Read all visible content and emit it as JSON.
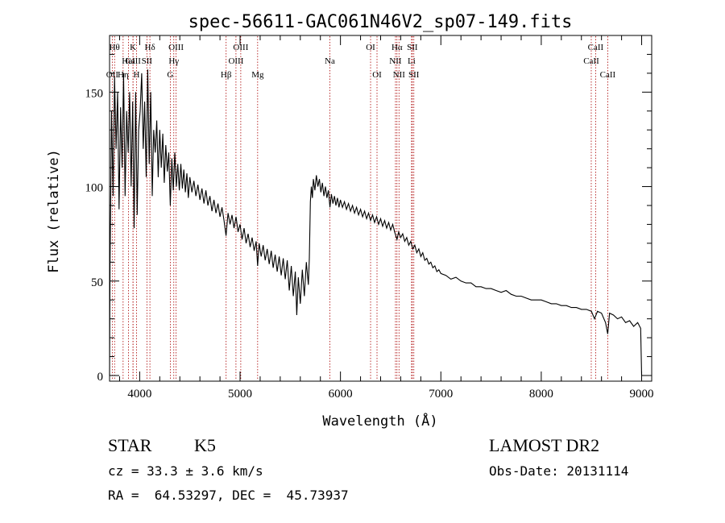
{
  "chart_data": {
    "type": "line",
    "title": "spec-56611-GAC061N46V2_sp07-149.fits",
    "xlabel": "Wavelength (Å)",
    "ylabel": "Flux (relative)",
    "xlim": [
      3700,
      9100
    ],
    "ylim": [
      -3,
      180
    ],
    "x_ticks": [
      "4000",
      "5000",
      "6000",
      "7000",
      "8000",
      "9000"
    ],
    "y_ticks": [
      "0",
      "50",
      "100",
      "150"
    ],
    "grid": false,
    "line_color": "#000000",
    "marker_line_color": "#aa0000",
    "spectrum": [
      [
        3700,
        0
      ],
      [
        3705,
        60
      ],
      [
        3720,
        140
      ],
      [
        3735,
        95
      ],
      [
        3750,
        158
      ],
      [
        3765,
        120
      ],
      [
        3780,
        150
      ],
      [
        3795,
        88
      ],
      [
        3810,
        142
      ],
      [
        3825,
        110
      ],
      [
        3840,
        160
      ],
      [
        3855,
        95
      ],
      [
        3870,
        140
      ],
      [
        3885,
        118
      ],
      [
        3900,
        150
      ],
      [
        3915,
        100
      ],
      [
        3930,
        145
      ],
      [
        3945,
        78
      ],
      [
        3960,
        150
      ],
      [
        3975,
        85
      ],
      [
        3990,
        130
      ],
      [
        4005,
        140
      ],
      [
        4020,
        160
      ],
      [
        4035,
        120
      ],
      [
        4050,
        145
      ],
      [
        4065,
        105
      ],
      [
        4080,
        162
      ],
      [
        4095,
        112
      ],
      [
        4110,
        150
      ],
      [
        4125,
        95
      ],
      [
        4140,
        130
      ],
      [
        4155,
        118
      ],
      [
        4170,
        135
      ],
      [
        4185,
        105
      ],
      [
        4200,
        130
      ],
      [
        4215,
        110
      ],
      [
        4230,
        128
      ],
      [
        4245,
        102
      ],
      [
        4260,
        122
      ],
      [
        4275,
        108
      ],
      [
        4290,
        118
      ],
      [
        4305,
        90
      ],
      [
        4320,
        115
      ],
      [
        4335,
        98
      ],
      [
        4350,
        118
      ],
      [
        4365,
        100
      ],
      [
        4380,
        112
      ],
      [
        4395,
        98
      ],
      [
        4410,
        112
      ],
      [
        4425,
        99
      ],
      [
        4440,
        109
      ],
      [
        4455,
        97
      ],
      [
        4470,
        107
      ],
      [
        4485,
        94
      ],
      [
        4500,
        105
      ],
      [
        4520,
        97
      ],
      [
        4540,
        103
      ],
      [
        4560,
        95
      ],
      [
        4580,
        101
      ],
      [
        4600,
        93
      ],
      [
        4620,
        99
      ],
      [
        4640,
        91
      ],
      [
        4660,
        98
      ],
      [
        4680,
        90
      ],
      [
        4700,
        95
      ],
      [
        4720,
        87
      ],
      [
        4740,
        93
      ],
      [
        4760,
        86
      ],
      [
        4780,
        91
      ],
      [
        4800,
        84
      ],
      [
        4820,
        89
      ],
      [
        4840,
        82
      ],
      [
        4860,
        74
      ],
      [
        4880,
        86
      ],
      [
        4900,
        80
      ],
      [
        4920,
        85
      ],
      [
        4940,
        78
      ],
      [
        4960,
        84
      ],
      [
        4980,
        76
      ],
      [
        5000,
        80
      ],
      [
        5020,
        72
      ],
      [
        5040,
        78
      ],
      [
        5060,
        70
      ],
      [
        5080,
        75
      ],
      [
        5100,
        68
      ],
      [
        5120,
        73
      ],
      [
        5140,
        66
      ],
      [
        5160,
        71
      ],
      [
        5175,
        58
      ],
      [
        5190,
        70
      ],
      [
        5210,
        63
      ],
      [
        5230,
        69
      ],
      [
        5250,
        61
      ],
      [
        5270,
        67
      ],
      [
        5290,
        59
      ],
      [
        5310,
        66
      ],
      [
        5330,
        57
      ],
      [
        5350,
        64
      ],
      [
        5370,
        55
      ],
      [
        5390,
        63
      ],
      [
        5410,
        53
      ],
      [
        5430,
        62
      ],
      [
        5450,
        51
      ],
      [
        5470,
        61
      ],
      [
        5490,
        45
      ],
      [
        5510,
        58
      ],
      [
        5530,
        42
      ],
      [
        5550,
        55
      ],
      [
        5565,
        32
      ],
      [
        5580,
        52
      ],
      [
        5600,
        38
      ],
      [
        5620,
        56
      ],
      [
        5640,
        42
      ],
      [
        5660,
        60
      ],
      [
        5680,
        48
      ],
      [
        5690,
        62
      ],
      [
        5700,
        92
      ],
      [
        5710,
        100
      ],
      [
        5720,
        94
      ],
      [
        5730,
        104
      ],
      [
        5745,
        98
      ],
      [
        5760,
        106
      ],
      [
        5775,
        100
      ],
      [
        5790,
        104
      ],
      [
        5805,
        97
      ],
      [
        5820,
        102
      ],
      [
        5835,
        95
      ],
      [
        5850,
        100
      ],
      [
        5865,
        94
      ],
      [
        5880,
        98
      ],
      [
        5895,
        89
      ],
      [
        5910,
        96
      ],
      [
        5925,
        91
      ],
      [
        5940,
        95
      ],
      [
        5955,
        90
      ],
      [
        5970,
        94
      ],
      [
        5985,
        89
      ],
      [
        6000,
        93
      ],
      [
        6020,
        89
      ],
      [
        6040,
        92
      ],
      [
        6060,
        88
      ],
      [
        6080,
        91
      ],
      [
        6100,
        87
      ],
      [
        6120,
        90
      ],
      [
        6140,
        86
      ],
      [
        6160,
        89
      ],
      [
        6180,
        85
      ],
      [
        6200,
        88
      ],
      [
        6220,
        84
      ],
      [
        6240,
        87
      ],
      [
        6260,
        83
      ],
      [
        6280,
        86
      ],
      [
        6300,
        82
      ],
      [
        6320,
        85
      ],
      [
        6340,
        81
      ],
      [
        6360,
        84
      ],
      [
        6380,
        80
      ],
      [
        6400,
        83
      ],
      [
        6420,
        79
      ],
      [
        6440,
        82
      ],
      [
        6460,
        78
      ],
      [
        6480,
        81
      ],
      [
        6500,
        77
      ],
      [
        6520,
        80
      ],
      [
        6540,
        76
      ],
      [
        6563,
        72
      ],
      [
        6580,
        76
      ],
      [
        6600,
        73
      ],
      [
        6620,
        75
      ],
      [
        6640,
        71
      ],
      [
        6660,
        73
      ],
      [
        6680,
        69
      ],
      [
        6700,
        71
      ],
      [
        6720,
        67
      ],
      [
        6740,
        69
      ],
      [
        6760,
        65
      ],
      [
        6780,
        67
      ],
      [
        6800,
        63
      ],
      [
        6820,
        65
      ],
      [
        6840,
        61
      ],
      [
        6860,
        62
      ],
      [
        6880,
        59
      ],
      [
        6900,
        60
      ],
      [
        6920,
        57
      ],
      [
        6940,
        58
      ],
      [
        6960,
        55
      ],
      [
        6980,
        56
      ],
      [
        7000,
        54
      ],
      [
        7050,
        53
      ],
      [
        7100,
        51
      ],
      [
        7150,
        52
      ],
      [
        7200,
        50
      ],
      [
        7250,
        49
      ],
      [
        7300,
        49
      ],
      [
        7350,
        47
      ],
      [
        7400,
        47
      ],
      [
        7450,
        46
      ],
      [
        7500,
        46
      ],
      [
        7550,
        45
      ],
      [
        7600,
        44
      ],
      [
        7650,
        45
      ],
      [
        7700,
        43
      ],
      [
        7750,
        42
      ],
      [
        7800,
        42
      ],
      [
        7850,
        41
      ],
      [
        7900,
        40
      ],
      [
        7950,
        40
      ],
      [
        8000,
        40
      ],
      [
        8050,
        39
      ],
      [
        8100,
        38
      ],
      [
        8150,
        38
      ],
      [
        8200,
        37
      ],
      [
        8250,
        37
      ],
      [
        8300,
        36
      ],
      [
        8350,
        36
      ],
      [
        8400,
        35
      ],
      [
        8450,
        35
      ],
      [
        8500,
        34
      ],
      [
        8530,
        30
      ],
      [
        8560,
        34
      ],
      [
        8600,
        33
      ],
      [
        8640,
        28
      ],
      [
        8662,
        22
      ],
      [
        8680,
        33
      ],
      [
        8720,
        32
      ],
      [
        8760,
        30
      ],
      [
        8800,
        31
      ],
      [
        8840,
        28
      ],
      [
        8880,
        29
      ],
      [
        8920,
        26
      ],
      [
        8960,
        28
      ],
      [
        8990,
        25
      ],
      [
        9000,
        0
      ]
    ],
    "line_markers": [
      {
        "label": "OII",
        "wavelength": 3727,
        "row": 2
      },
      {
        "label": "Hθ",
        "wavelength": 3750,
        "row": 0
      },
      {
        "label": "Hη",
        "wavelength": 3835,
        "row": 2
      },
      {
        "label": "CaII",
        "wavelength": 3934,
        "row": 1
      },
      {
        "label": "K",
        "wavelength": 3934,
        "row": 0
      },
      {
        "label": "H",
        "wavelength": 3969,
        "row": 2
      },
      {
        "label": "HeI",
        "wavelength": 3889,
        "row": 1
      },
      {
        "label": "SII",
        "wavelength": 4072,
        "row": 1
      },
      {
        "label": "Hδ",
        "wavelength": 4102,
        "row": 0
      },
      {
        "label": "OIII",
        "wavelength": 4363,
        "row": 0
      },
      {
        "label": "Hγ",
        "wavelength": 4340,
        "row": 1
      },
      {
        "label": "G",
        "wavelength": 4305,
        "row": 2
      },
      {
        "label": "Hβ",
        "wavelength": 4861,
        "row": 2
      },
      {
        "label": "OIII",
        "wavelength": 4959,
        "row": 1
      },
      {
        "label": "OIII",
        "wavelength": 5007,
        "row": 0
      },
      {
        "label": "Mg",
        "wavelength": 5175,
        "row": 2
      },
      {
        "label": "Na",
        "wavelength": 5894,
        "row": 1
      },
      {
        "label": "OI",
        "wavelength": 6300,
        "row": 0
      },
      {
        "label": "OI",
        "wavelength": 6364,
        "row": 2
      },
      {
        "label": "Hα",
        "wavelength": 6563,
        "row": 0
      },
      {
        "label": "NII",
        "wavelength": 6548,
        "row": 1
      },
      {
        "label": "NII",
        "wavelength": 6583,
        "row": 2
      },
      {
        "label": "SII",
        "wavelength": 6716,
        "row": 0
      },
      {
        "label": "Li",
        "wavelength": 6708,
        "row": 1
      },
      {
        "label": "SII",
        "wavelength": 6731,
        "row": 2
      },
      {
        "label": "CaII",
        "wavelength": 8498,
        "row": 1
      },
      {
        "label": "CaII",
        "wavelength": 8542,
        "row": 0
      },
      {
        "label": "CaII",
        "wavelength": 8662,
        "row": 2
      }
    ]
  },
  "info": {
    "class_label": "STAR",
    "subclass": "K5",
    "survey": "LAMOST DR2",
    "cz": "cz = 33.3 ± 3.6 km/s",
    "obs_date": "Obs-Date: 20131114",
    "coords": "RA =  64.53297, DEC =  45.73937"
  }
}
